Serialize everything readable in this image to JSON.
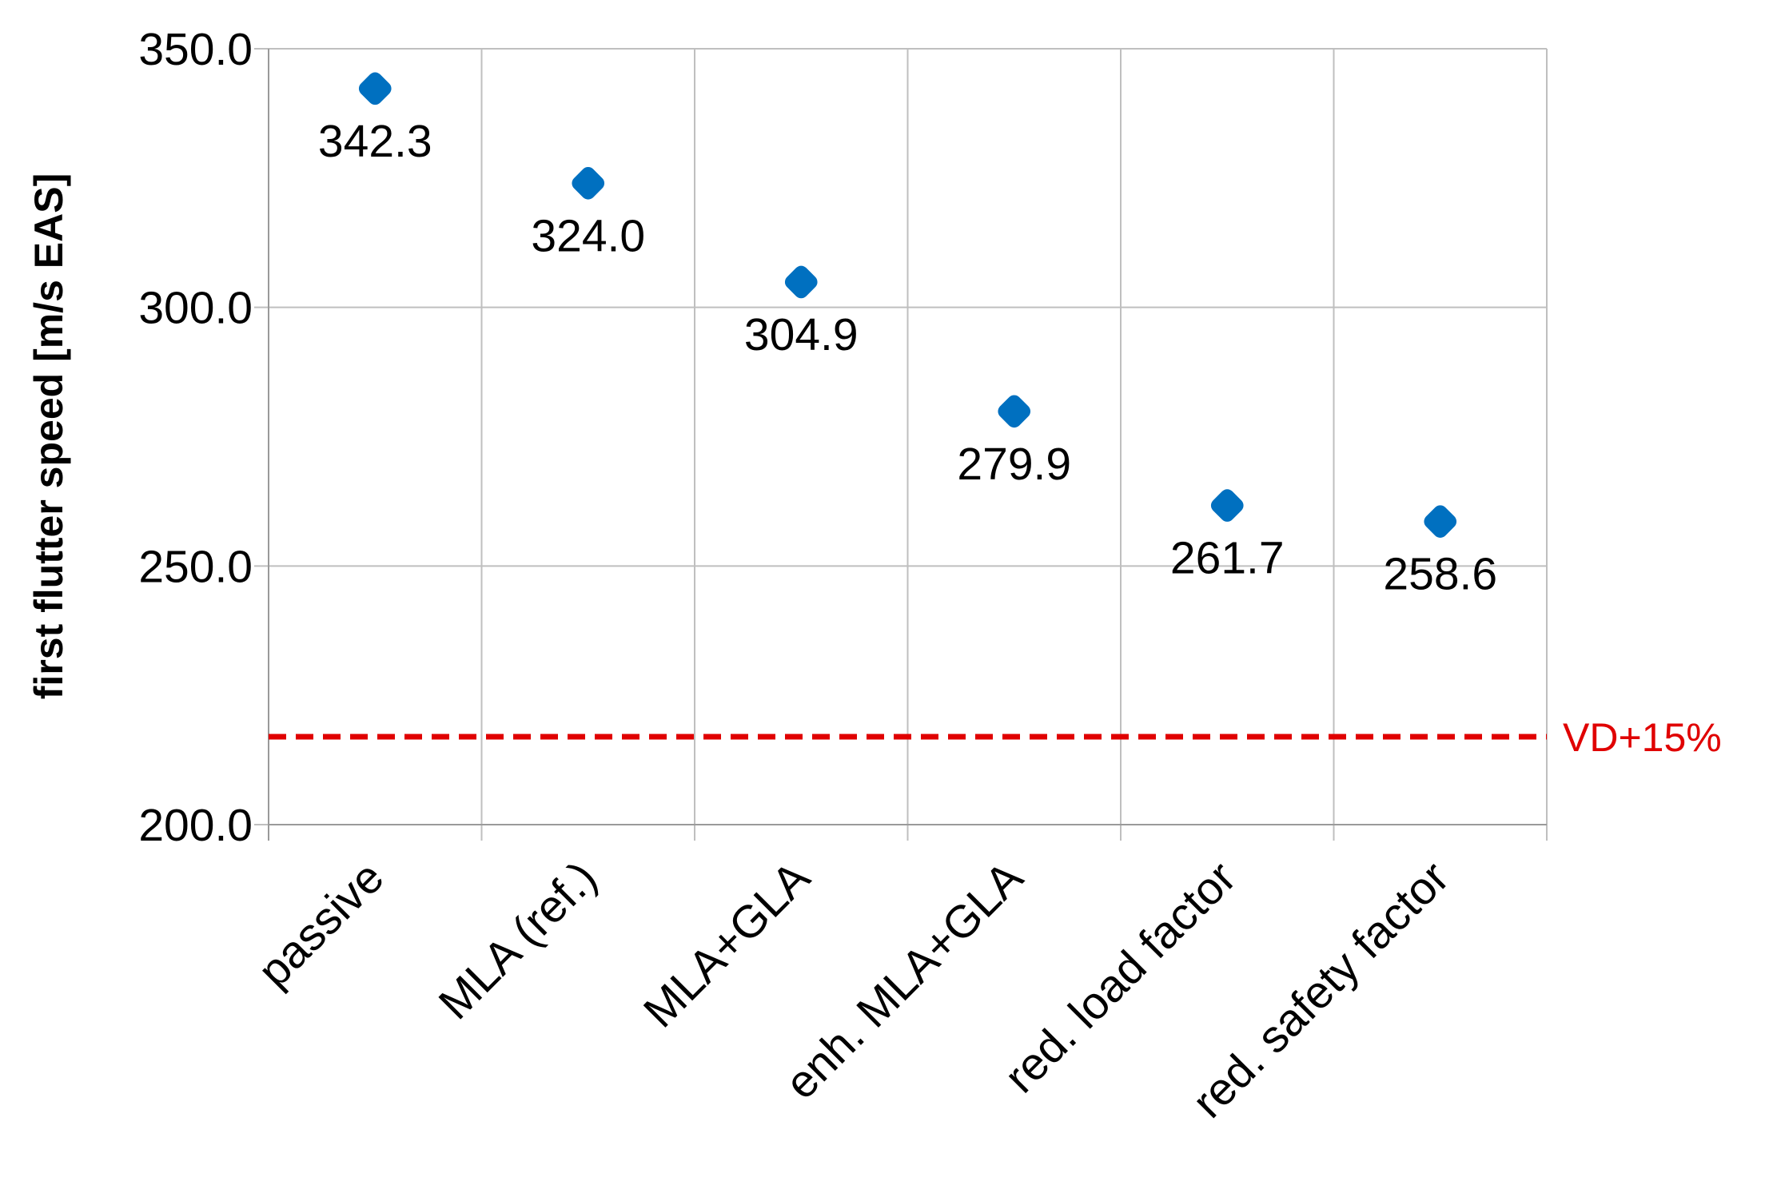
{
  "chart_data": {
    "type": "scatter",
    "y_axis_label": "first flutter speed [m/s EAS]",
    "categories": [
      "passive",
      "MLA (ref.)",
      "MLA+GLA",
      "enh. MLA+GLA",
      "red. load factor",
      "red. safety factor"
    ],
    "values": [
      342.3,
      324.0,
      304.9,
      279.9,
      261.7,
      258.6
    ],
    "value_labels": [
      "342.3",
      "324.0",
      "304.9",
      "279.9",
      "261.7",
      "258.6"
    ],
    "color": "#0070c0",
    "ylim": [
      200,
      350
    ],
    "yticks": [
      {
        "value": 200,
        "label": "200.0"
      },
      {
        "value": 250,
        "label": "250.0"
      },
      {
        "value": 300,
        "label": "300.0"
      },
      {
        "value": 350,
        "label": "350.0"
      }
    ],
    "grid": true,
    "reference_lines": [
      {
        "value": 217,
        "label": "VD+15%",
        "color": "#e00000"
      }
    ]
  }
}
